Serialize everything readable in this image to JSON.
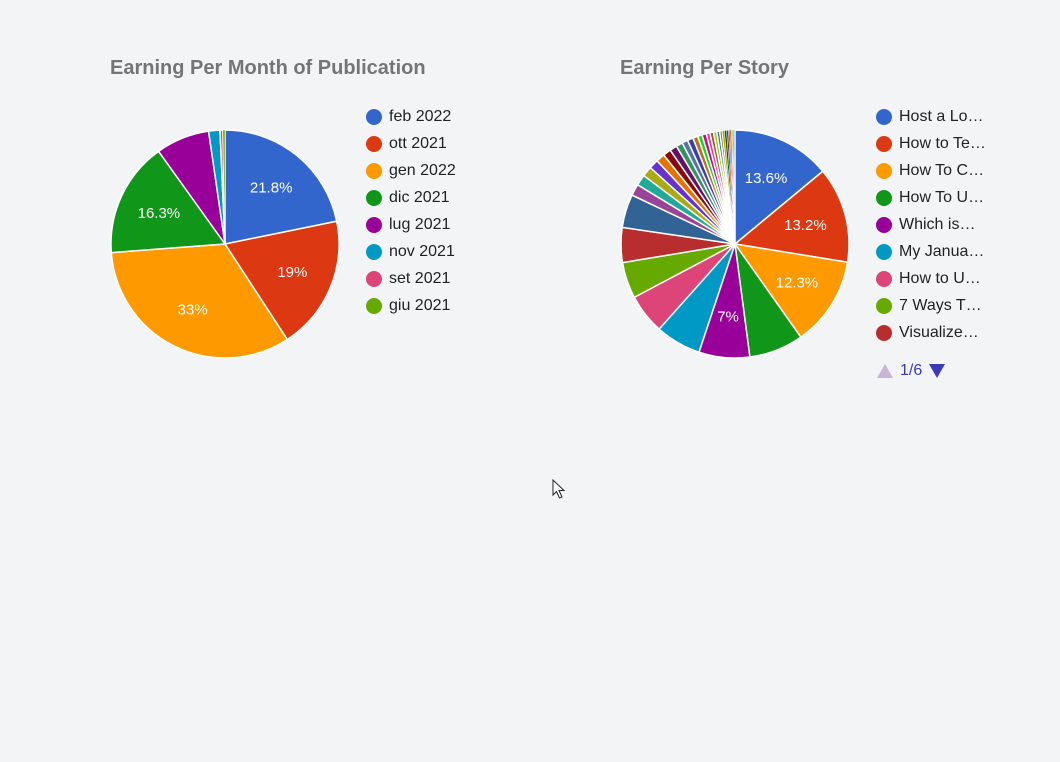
{
  "chart_data": [
    {
      "type": "pie",
      "title": "Earning Per Month of Publication",
      "slices": [
        {
          "label": "feb 2022",
          "value": 21.8,
          "display": "21.8%",
          "color": "#3366cc"
        },
        {
          "label": "ott 2021",
          "value": 19.0,
          "display": "19%",
          "color": "#dc3912"
        },
        {
          "label": "gen 2022",
          "value": 33.0,
          "display": "33%",
          "color": "#ff9900"
        },
        {
          "label": "dic 2021",
          "value": 16.3,
          "display": "16.3%",
          "color": "#109618"
        },
        {
          "label": "lug 2021",
          "value": 7.6,
          "display": "",
          "color": "#990099"
        },
        {
          "label": "nov 2021",
          "value": 1.6,
          "display": "",
          "color": "#0099c6"
        },
        {
          "label": "set 2021",
          "value": 0.4,
          "display": "",
          "color": "#dd4477"
        },
        {
          "label": "giu 2021",
          "value": 0.3,
          "display": "",
          "color": "#66aa00"
        }
      ],
      "legend_position": "right"
    },
    {
      "type": "pie",
      "title": "Earning Per Story",
      "slices": [
        {
          "label": "Host a Lo…",
          "value": 13.6,
          "display": "13.6%",
          "color": "#3366cc"
        },
        {
          "label": "How to Te…",
          "value": 13.2,
          "display": "13.2%",
          "color": "#dc3912"
        },
        {
          "label": "How To C…",
          "value": 12.3,
          "display": "12.3%",
          "color": "#ff9900"
        },
        {
          "label": "How To U…",
          "value": 7.5,
          "display": "",
          "color": "#109618"
        },
        {
          "label": "Which is…",
          "value": 7.0,
          "display": "7%",
          "color": "#990099"
        },
        {
          "label": "My Janua…",
          "value": 6.3,
          "display": "",
          "color": "#0099c6"
        },
        {
          "label": "How to U…",
          "value": 5.5,
          "display": "",
          "color": "#dd4477"
        },
        {
          "label": "7 Ways T…",
          "value": 5.0,
          "display": "",
          "color": "#66aa00"
        },
        {
          "label": "Visualize…",
          "value": 4.8,
          "display": "",
          "color": "#b82e2e"
        }
      ],
      "extra_slices": [
        {
          "value": 4.6,
          "color": "#316395"
        },
        {
          "value": 1.6,
          "color": "#994499"
        },
        {
          "value": 1.5,
          "color": "#22aa99"
        },
        {
          "value": 1.4,
          "color": "#aaaa11"
        },
        {
          "value": 1.3,
          "color": "#6633cc"
        },
        {
          "value": 1.2,
          "color": "#e67300"
        },
        {
          "value": 1.1,
          "color": "#8b0707"
        },
        {
          "value": 1.0,
          "color": "#651067"
        },
        {
          "value": 0.9,
          "color": "#329262"
        },
        {
          "value": 0.8,
          "color": "#5574a6"
        },
        {
          "value": 0.8,
          "color": "#3b3eac"
        },
        {
          "value": 0.7,
          "color": "#b77322"
        },
        {
          "value": 0.6,
          "color": "#16d620"
        },
        {
          "value": 0.6,
          "color": "#b91383"
        },
        {
          "value": 0.5,
          "color": "#f4359e"
        },
        {
          "value": 0.5,
          "color": "#9c5935"
        },
        {
          "value": 0.45,
          "color": "#a9c413"
        },
        {
          "value": 0.4,
          "color": "#2a778d"
        },
        {
          "value": 0.35,
          "color": "#668d1c"
        },
        {
          "value": 0.3,
          "color": "#bea413"
        },
        {
          "value": 0.3,
          "color": "#0c5922"
        },
        {
          "value": 0.25,
          "color": "#743411"
        },
        {
          "value": 0.2,
          "color": "#3366cc"
        },
        {
          "value": 0.2,
          "color": "#dc3912"
        },
        {
          "value": 0.15,
          "color": "#ff9900"
        },
        {
          "value": 0.15,
          "color": "#109618"
        },
        {
          "value": 0.1,
          "color": "#990099"
        },
        {
          "value": 0.1,
          "color": "#0099c6"
        }
      ],
      "legend_position": "right",
      "pager": {
        "text": "1/6",
        "prev_icon": "triangle-up-icon",
        "next_icon": "triangle-down-icon"
      }
    }
  ]
}
